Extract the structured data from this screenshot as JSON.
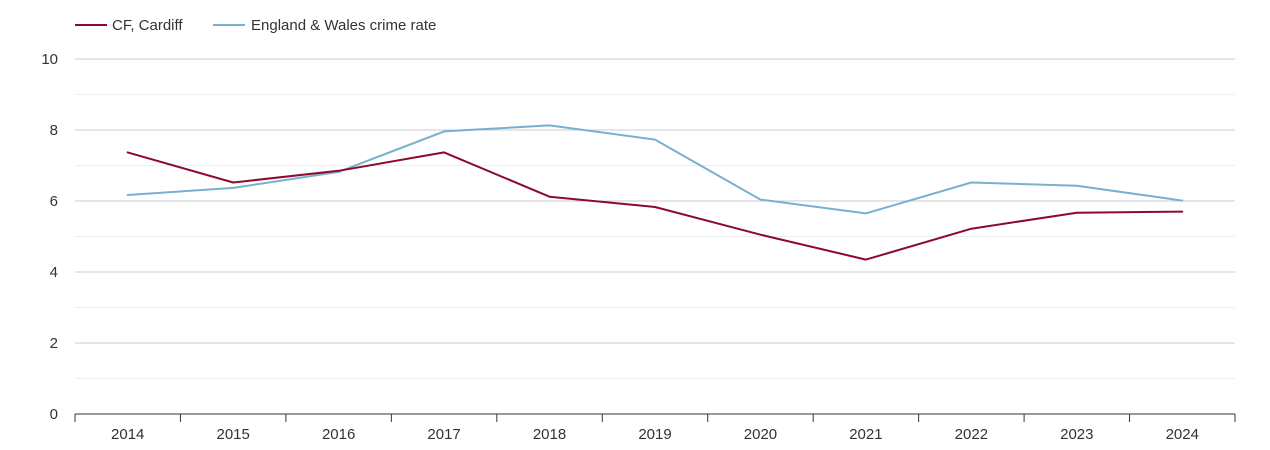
{
  "chart_data": {
    "type": "line",
    "title": "",
    "xlabel": "",
    "ylabel": "",
    "categories": [
      "2014",
      "2015",
      "2016",
      "2017",
      "2018",
      "2019",
      "2020",
      "2021",
      "2022",
      "2023",
      "2024"
    ],
    "ylim": [
      0,
      10
    ],
    "yticks": [
      0,
      2,
      4,
      6,
      8,
      10
    ],
    "grid": true,
    "legend_position": "top-left",
    "series": [
      {
        "name": "CF, Cardiff",
        "color": "#8b0a2e",
        "values": [
          7.37,
          6.52,
          6.85,
          7.37,
          6.12,
          5.83,
          5.05,
          4.35,
          5.22,
          5.67,
          5.7
        ]
      },
      {
        "name": "England & Wales crime rate",
        "color": "#7aafd0",
        "values": [
          6.17,
          6.37,
          6.82,
          7.96,
          8.13,
          7.73,
          6.04,
          5.65,
          6.52,
          6.43,
          6.01
        ]
      }
    ]
  }
}
